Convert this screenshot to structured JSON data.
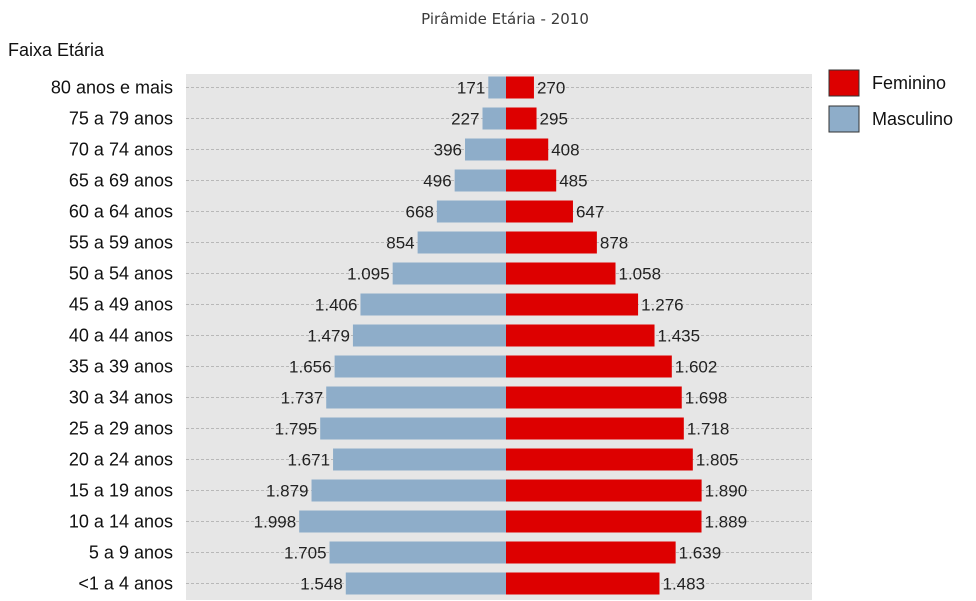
{
  "chart_data": {
    "type": "bar",
    "orientation": "horizontal-diverging",
    "title": "Pirâmide Etária - 2010",
    "ylabel": "Faixa Etária",
    "xlabel": "",
    "categories": [
      "80 anos e mais",
      "75 a 79 anos",
      "70 a 74 anos",
      "65 a 69 anos",
      "60 a 64 anos",
      "55 a 59 anos",
      "50 a 54 anos",
      "45 a 49 anos",
      "40 a 44 anos",
      "35 a 39 anos",
      "30 a 34 anos",
      "25 a 29 anos",
      "20 a 24 anos",
      "15 a 19 anos",
      "10 a 14 anos",
      "5 a 9 anos",
      "<1 a 4 anos"
    ],
    "series": [
      {
        "name": "Feminino",
        "side": "right",
        "color": "#dd0000",
        "values": [
          270,
          295,
          408,
          485,
          647,
          878,
          1058,
          1276,
          1435,
          1602,
          1698,
          1718,
          1805,
          1890,
          1889,
          1639,
          1483
        ],
        "labels": [
          "270",
          "295",
          "408",
          "485",
          "647",
          "878",
          "1.058",
          "1.276",
          "1.435",
          "1.602",
          "1.698",
          "1.718",
          "1.805",
          "1.890",
          "1.889",
          "1.639",
          "1.483"
        ]
      },
      {
        "name": "Masculino",
        "side": "left",
        "color": "#8eadc9",
        "values": [
          171,
          227,
          396,
          496,
          668,
          854,
          1095,
          1406,
          1479,
          1656,
          1737,
          1795,
          1671,
          1879,
          1998,
          1705,
          1548
        ],
        "labels": [
          "171",
          "227",
          "396",
          "496",
          "668",
          "854",
          "1.095",
          "1.406",
          "1.479",
          "1.656",
          "1.737",
          "1.795",
          "1.671",
          "1.879",
          "1.998",
          "1.705",
          "1.548"
        ]
      }
    ],
    "xlim": [
      -2150,
      2150
    ],
    "grid": true,
    "legend_position": "top-right"
  }
}
